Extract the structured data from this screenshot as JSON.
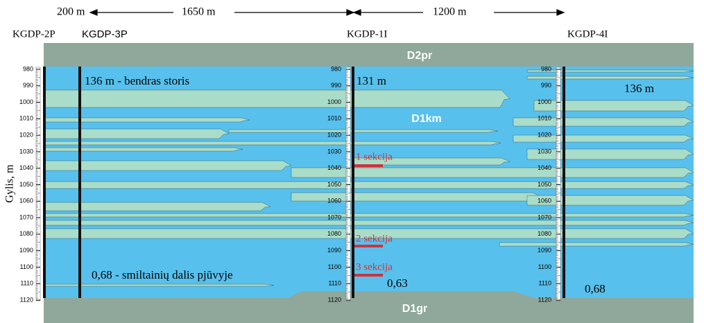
{
  "header": {
    "distances": [
      "200 m",
      "1650 m",
      "1200 m"
    ]
  },
  "wells": [
    "KGDP-2P",
    "KGDP-3P",
    "KGDP-1I",
    "KGDP-4I"
  ],
  "axis_label": "Gylis, m",
  "depth_ticks": [
    980,
    990,
    1000,
    1010,
    1020,
    1030,
    1040,
    1050,
    1060,
    1070,
    1080,
    1090,
    1100,
    1110,
    1120
  ],
  "units": {
    "top": "D2pr",
    "middle": "D1km",
    "bottom": "D1gr"
  },
  "annotations": {
    "thickness_left": "136 m - bendras storis",
    "thickness_middle": "131 m",
    "thickness_right": "136 m",
    "sand_left": "0,68 - smiltainių dalis pjūvyje",
    "sand_middle": "0,63",
    "sand_right": "0,68"
  },
  "sections": [
    "1 sekcija",
    "2 sekcija",
    "3 sekcija"
  ]
}
